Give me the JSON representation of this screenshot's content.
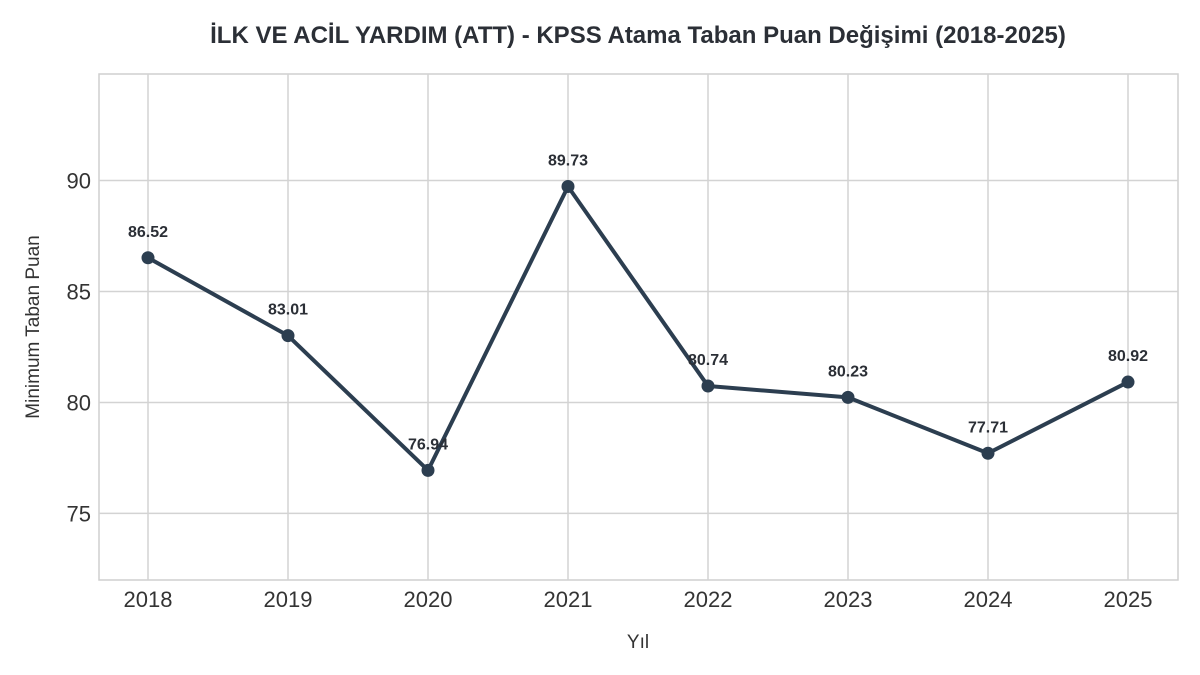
{
  "chart_data": {
    "type": "line",
    "title": "İLK VE ACİL YARDIM (ATT) - KPSS Atama Taban Puan Değişimi (2018-2025)",
    "xlabel": "Yıl",
    "ylabel": "Minimum Taban Puan",
    "categories": [
      "2018",
      "2019",
      "2020",
      "2021",
      "2022",
      "2023",
      "2024",
      "2025"
    ],
    "values": [
      86.52,
      83.01,
      76.94,
      89.73,
      80.74,
      80.23,
      77.71,
      80.92
    ],
    "value_labels": [
      "86.52",
      "83.01",
      "76.94",
      "89.73",
      "80.74",
      "80.23",
      "77.71",
      "80.92"
    ],
    "ylim": [
      72.0,
      94.8
    ],
    "yticks": [
      75,
      80,
      85,
      90
    ],
    "ytick_labels": [
      "75",
      "80",
      "85",
      "90"
    ],
    "grid": true,
    "line_color": "#2c3e50"
  }
}
